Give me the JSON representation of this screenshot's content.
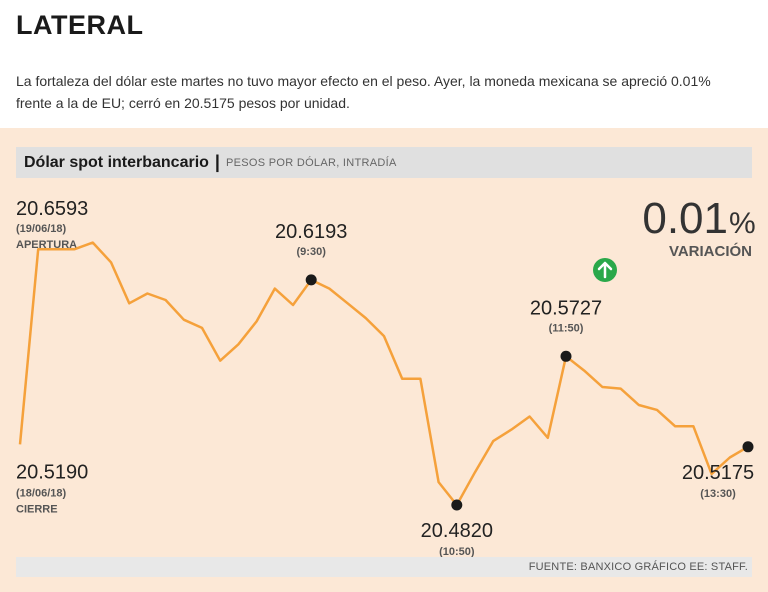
{
  "header": {
    "title": "LATERAL",
    "dek": "La fortaleza del dólar este martes no tuvo mayor efecto en el peso. Ayer, la moneda mexicana se apreció 0.01% frente a la de EU; cerró en 20.5175 pesos por unidad."
  },
  "chart_header": {
    "title": "Dólar spot interbancario",
    "separator": "|",
    "subtitle": "PESOS POR DÓLAR, INTRADÍA"
  },
  "variation": {
    "value": "0.01",
    "unit": "%",
    "label": "VARIACIÓN",
    "direction_icon": "arrow-up-circle-icon",
    "direction_color": "#2aa84a"
  },
  "source": "FUENTE: BANXICO GRÁFICO EE: STAFF.",
  "colors": {
    "line": "#f5a13b",
    "marker": "#1a1a1a",
    "background": "#fce8d6"
  },
  "chart_data": {
    "type": "line",
    "ylim": [
      20.468,
      20.668
    ],
    "values": [
      20.519,
      20.638,
      20.638,
      20.638,
      20.642,
      20.63,
      20.605,
      20.611,
      20.607,
      20.595,
      20.59,
      20.57,
      20.58,
      20.594,
      20.614,
      20.604,
      20.6193,
      20.614,
      20.605,
      20.596,
      20.585,
      20.559,
      20.559,
      20.496,
      20.482,
      20.502,
      20.521,
      20.528,
      20.536,
      20.523,
      20.5727,
      20.564,
      20.554,
      20.553,
      20.543,
      20.54,
      20.53,
      20.53,
      20.501,
      20.511,
      20.5175
    ],
    "annotations": [
      {
        "point": 0,
        "value": "20.5190",
        "date": "(18/06/18)",
        "label": "CIERRE",
        "marker": false
      },
      {
        "point": 16,
        "value": "20.6193",
        "date": "(9:30)",
        "marker": true
      },
      {
        "point": 24,
        "value": "20.4820",
        "date": "(10:50)",
        "marker": true
      },
      {
        "point": 30,
        "value": "20.5727",
        "date": "(11:50)",
        "marker": true
      },
      {
        "point": 40,
        "value": "20.5175",
        "date": "(13:30)",
        "marker": true
      }
    ],
    "opening": {
      "value": "20.6593",
      "date": "(19/06/18)",
      "label": "APERTURA"
    }
  }
}
